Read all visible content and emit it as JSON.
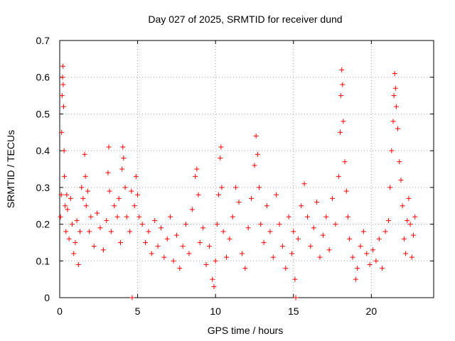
{
  "chart_data": {
    "type": "scatter",
    "title": "Day 027 of 2025, SRMTID for receiver dund",
    "xlabel": "GPS time / hours",
    "ylabel": "SRMTID / TECUs",
    "xlim": [
      0,
      24
    ],
    "ylim": [
      0,
      0.7
    ],
    "xticks": [
      0,
      5,
      10,
      15,
      20
    ],
    "xtick_labels": [
      "0",
      "5",
      "10",
      "15",
      "20"
    ],
    "yticks": [
      0,
      0.1,
      0.2,
      0.3,
      0.4,
      0.5,
      0.6,
      0.7
    ],
    "ytick_labels": [
      "0",
      "0.1",
      "0.2",
      "0.3",
      "0.4",
      "0.5",
      "0.6",
      "0.7"
    ],
    "grid": true,
    "marker": "+",
    "color": "#ff0000",
    "series": [
      {
        "name": "SRMTID",
        "points": [
          [
            0.05,
            0.22
          ],
          [
            0.1,
            0.28
          ],
          [
            0.12,
            0.45
          ],
          [
            0.15,
            0.55
          ],
          [
            0.18,
            0.6
          ],
          [
            0.2,
            0.63
          ],
          [
            0.22,
            0.58
          ],
          [
            0.25,
            0.52
          ],
          [
            0.28,
            0.4
          ],
          [
            0.3,
            0.33
          ],
          [
            0.35,
            0.25
          ],
          [
            0.4,
            0.18
          ],
          [
            0.45,
            0.28
          ],
          [
            0.5,
            0.24
          ],
          [
            0.6,
            0.16
          ],
          [
            0.7,
            0.27
          ],
          [
            0.8,
            0.2
          ],
          [
            0.9,
            0.12
          ],
          [
            1.0,
            0.15
          ],
          [
            1.1,
            0.21
          ],
          [
            1.2,
            0.09
          ],
          [
            1.3,
            0.18
          ],
          [
            1.4,
            0.3
          ],
          [
            1.5,
            0.27
          ],
          [
            1.6,
            0.39
          ],
          [
            1.65,
            0.33
          ],
          [
            1.7,
            0.25
          ],
          [
            1.8,
            0.29
          ],
          [
            1.9,
            0.18
          ],
          [
            2.0,
            0.22
          ],
          [
            2.2,
            0.14
          ],
          [
            2.4,
            0.23
          ],
          [
            2.6,
            0.19
          ],
          [
            2.8,
            0.13
          ],
          [
            3.0,
            0.21
          ],
          [
            3.1,
            0.34
          ],
          [
            3.15,
            0.41
          ],
          [
            3.2,
            0.29
          ],
          [
            3.3,
            0.18
          ],
          [
            3.5,
            0.25
          ],
          [
            3.7,
            0.22
          ],
          [
            3.8,
            0.27
          ],
          [
            3.9,
            0.15
          ],
          [
            4.0,
            0.35
          ],
          [
            4.05,
            0.41
          ],
          [
            4.1,
            0.38
          ],
          [
            4.2,
            0.3
          ],
          [
            4.3,
            0.22
          ],
          [
            4.5,
            0.18
          ],
          [
            4.6,
            0.29
          ],
          [
            4.65,
            0.0
          ],
          [
            4.8,
            0.25
          ],
          [
            4.9,
            0.33
          ],
          [
            5.0,
            0.28
          ],
          [
            5.1,
            0.22
          ],
          [
            5.3,
            0.2
          ],
          [
            5.5,
            0.15
          ],
          [
            5.7,
            0.18
          ],
          [
            5.9,
            0.12
          ],
          [
            6.1,
            0.21
          ],
          [
            6.3,
            0.14
          ],
          [
            6.5,
            0.19
          ],
          [
            6.7,
            0.11
          ],
          [
            6.9,
            0.16
          ],
          [
            7.1,
            0.22
          ],
          [
            7.3,
            0.1
          ],
          [
            7.5,
            0.17
          ],
          [
            7.7,
            0.08
          ],
          [
            7.9,
            0.14
          ],
          [
            8.1,
            0.2
          ],
          [
            8.3,
            0.12
          ],
          [
            8.5,
            0.24
          ],
          [
            8.7,
            0.33
          ],
          [
            8.8,
            0.35
          ],
          [
            8.9,
            0.28
          ],
          [
            9.0,
            0.15
          ],
          [
            9.2,
            0.19
          ],
          [
            9.4,
            0.09
          ],
          [
            9.6,
            0.14
          ],
          [
            9.8,
            0.05
          ],
          [
            9.9,
            0.03
          ],
          [
            10.0,
            0.1
          ],
          [
            10.1,
            0.2
          ],
          [
            10.2,
            0.28
          ],
          [
            10.3,
            0.38
          ],
          [
            10.35,
            0.41
          ],
          [
            10.4,
            0.3
          ],
          [
            10.5,
            0.18
          ],
          [
            10.7,
            0.11
          ],
          [
            10.9,
            0.16
          ],
          [
            11.1,
            0.22
          ],
          [
            11.3,
            0.3
          ],
          [
            11.5,
            0.26
          ],
          [
            11.7,
            0.12
          ],
          [
            11.9,
            0.08
          ],
          [
            12.1,
            0.19
          ],
          [
            12.3,
            0.27
          ],
          [
            12.5,
            0.36
          ],
          [
            12.6,
            0.44
          ],
          [
            12.7,
            0.39
          ],
          [
            12.8,
            0.3
          ],
          [
            12.9,
            0.2
          ],
          [
            13.1,
            0.15
          ],
          [
            13.3,
            0.25
          ],
          [
            13.5,
            0.18
          ],
          [
            13.7,
            0.11
          ],
          [
            13.9,
            0.28
          ],
          [
            14.1,
            0.2
          ],
          [
            14.3,
            0.14
          ],
          [
            14.5,
            0.08
          ],
          [
            14.7,
            0.22
          ],
          [
            14.9,
            0.12
          ],
          [
            15.0,
            0.18
          ],
          [
            15.1,
            0.05
          ],
          [
            15.15,
            0.0
          ],
          [
            15.3,
            0.16
          ],
          [
            15.5,
            0.25
          ],
          [
            15.7,
            0.31
          ],
          [
            15.9,
            0.22
          ],
          [
            16.1,
            0.14
          ],
          [
            16.3,
            0.19
          ],
          [
            16.5,
            0.26
          ],
          [
            16.7,
            0.11
          ],
          [
            16.9,
            0.17
          ],
          [
            17.1,
            0.22
          ],
          [
            17.3,
            0.13
          ],
          [
            17.5,
            0.27
          ],
          [
            17.7,
            0.2
          ],
          [
            17.9,
            0.33
          ],
          [
            18.0,
            0.45
          ],
          [
            18.05,
            0.55
          ],
          [
            18.1,
            0.62
          ],
          [
            18.15,
            0.58
          ],
          [
            18.2,
            0.48
          ],
          [
            18.3,
            0.37
          ],
          [
            18.4,
            0.29
          ],
          [
            18.5,
            0.22
          ],
          [
            18.6,
            0.16
          ],
          [
            18.8,
            0.11
          ],
          [
            19.0,
            0.05
          ],
          [
            19.1,
            0.08
          ],
          [
            19.3,
            0.14
          ],
          [
            19.5,
            0.18
          ],
          [
            19.7,
            0.12
          ],
          [
            19.9,
            0.09
          ],
          [
            20.1,
            0.13
          ],
          [
            20.3,
            0.1
          ],
          [
            20.5,
            0.16
          ],
          [
            20.7,
            0.08
          ],
          [
            20.9,
            0.18
          ],
          [
            21.1,
            0.21
          ],
          [
            21.2,
            0.3
          ],
          [
            21.3,
            0.4
          ],
          [
            21.4,
            0.48
          ],
          [
            21.45,
            0.55
          ],
          [
            21.5,
            0.61
          ],
          [
            21.55,
            0.57
          ],
          [
            21.6,
            0.52
          ],
          [
            21.7,
            0.46
          ],
          [
            21.8,
            0.37
          ],
          [
            21.9,
            0.32
          ],
          [
            22.0,
            0.25
          ],
          [
            22.1,
            0.16
          ],
          [
            22.2,
            0.12
          ],
          [
            22.3,
            0.21
          ],
          [
            22.4,
            0.27
          ],
          [
            22.5,
            0.2
          ],
          [
            22.6,
            0.11
          ],
          [
            22.7,
            0.17
          ],
          [
            22.8,
            0.22
          ]
        ]
      }
    ]
  }
}
